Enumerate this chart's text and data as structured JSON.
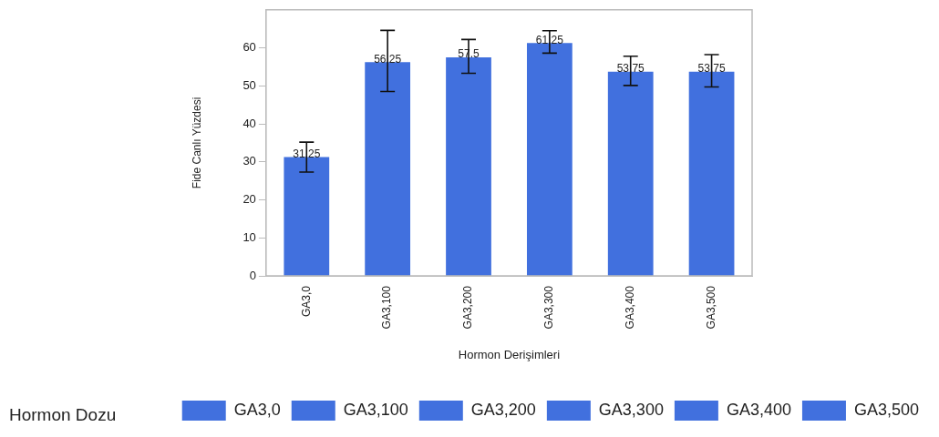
{
  "chart_data": {
    "type": "bar",
    "xlabel": "Hormon Derişimleri",
    "ylabel": "Fide Canlı Yüzdesi",
    "legend_title": "Hormon Dozu",
    "legend": "bottom",
    "categories": [
      "GA3,0",
      "GA3,100",
      "GA3,200",
      "GA3,300",
      "GA3,400",
      "GA3,500"
    ],
    "series": [
      {
        "name": "GA3,0",
        "color": "#4170de",
        "values": [
          31.25,
          null,
          null,
          null,
          null,
          null
        ],
        "errors": [
          [
            27.3,
            35.2
          ],
          null,
          null,
          null,
          null,
          null
        ]
      },
      {
        "name": "GA3,100",
        "color": "#4170de",
        "values": [
          null,
          56.25,
          null,
          null,
          null,
          null
        ],
        "errors": [
          null,
          [
            48.5,
            64.6
          ],
          null,
          null,
          null,
          null
        ]
      },
      {
        "name": "GA3,200",
        "color": "#4170de",
        "values": [
          null,
          null,
          57.5,
          null,
          null,
          null
        ],
        "errors": [
          null,
          null,
          [
            53.3,
            62.2
          ],
          null,
          null,
          null
        ]
      },
      {
        "name": "GA3,300",
        "color": "#4170de",
        "values": [
          null,
          null,
          null,
          61.25,
          null,
          null
        ],
        "errors": [
          null,
          null,
          null,
          [
            58.6,
            64.5
          ],
          null,
          null
        ]
      },
      {
        "name": "GA3,400",
        "color": "#4170de",
        "values": [
          null,
          null,
          null,
          null,
          53.75,
          null
        ],
        "errors": [
          null,
          null,
          null,
          null,
          [
            50.1,
            57.8
          ],
          null
        ]
      },
      {
        "name": "GA3,500",
        "color": "#4170de",
        "values": [
          null,
          null,
          null,
          null,
          null,
          53.75
        ],
        "errors": [
          null,
          null,
          null,
          null,
          null,
          [
            49.7,
            58.2
          ]
        ]
      }
    ],
    "data_labels": true,
    "grid": false,
    "ylim": [
      0,
      70
    ],
    "yticks": [
      0,
      10,
      20,
      30,
      40,
      50,
      60
    ]
  }
}
